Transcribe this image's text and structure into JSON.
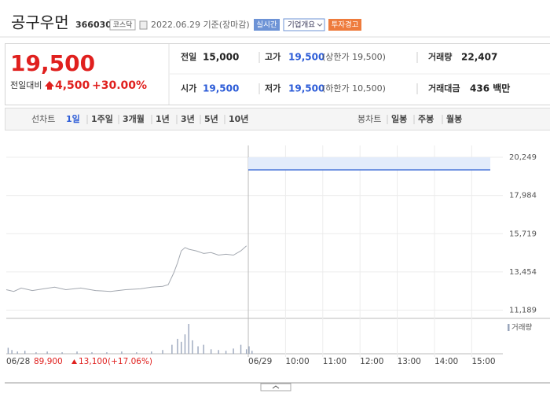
{
  "header": {
    "name": "공구우먼",
    "code": "366030",
    "market": "코스닥",
    "date": "2022.06.29 기준(장마감)",
    "buttons": [
      "실시간",
      "기업개요",
      "투자경고"
    ]
  },
  "quote": {
    "price": "19,500",
    "change_label": "전일대비",
    "change": "4,500",
    "change_pct": "+30.00%",
    "stats": [
      {
        "label": "전일",
        "value": "15,000"
      },
      {
        "label": "고가",
        "value": "19,500",
        "note": "(상한가 19,500)"
      },
      {
        "label": "거래량",
        "value": "22,407"
      },
      {
        "label": "시가",
        "value": "19,500"
      },
      {
        "label": "저가",
        "value": "19,500",
        "note": "(하한가 10,500)"
      },
      {
        "label": "거래대금",
        "value": "436 백만"
      }
    ]
  },
  "tabs": {
    "line_chart": "선차트",
    "line_periods": [
      "1일",
      "1주일",
      "3개월",
      "1년",
      "3년",
      "5년",
      "10년"
    ],
    "candle_chart": "봉차트",
    "candle_periods": [
      "일봉",
      "주봉",
      "월봉"
    ]
  },
  "footer": {
    "price": "89,900",
    "change": "13,100",
    "change_pct": "(+17.06%)"
  },
  "chart_data": {
    "type": "line",
    "xlim": [
      0,
      13.4
    ],
    "ylim": [
      10700,
      20950
    ],
    "xticks": [
      {
        "value": 0,
        "label": "06/28"
      },
      {
        "value": 6.5,
        "label": "06/29"
      },
      {
        "value": 7.5,
        "label": "10:00"
      },
      {
        "value": 8.5,
        "label": "11:00"
      },
      {
        "value": 9.5,
        "label": "12:00"
      },
      {
        "value": 10.5,
        "label": "13:00"
      },
      {
        "value": 11.5,
        "label": "14:00"
      },
      {
        "value": 12.5,
        "label": "15:00"
      }
    ],
    "yticks": [
      {
        "value": 11189,
        "label": "11,189"
      },
      {
        "value": 13454,
        "label": "13,454"
      },
      {
        "value": 15719,
        "label": "15,719"
      },
      {
        "value": 17984,
        "label": "17,984"
      },
      {
        "value": 20249,
        "label": "20,249"
      }
    ],
    "grid": true,
    "series": [
      {
        "color": "#a3a8b0",
        "x": [
          0,
          0.2,
          0.4,
          0.7,
          1.0,
          1.3,
          1.6,
          2.0,
          2.4,
          2.8,
          3.2,
          3.6,
          3.9,
          4.2,
          4.35,
          4.5,
          4.6,
          4.7,
          4.8,
          4.9,
          5.1,
          5.3,
          5.5,
          5.7,
          5.9,
          6.1,
          6.3,
          6.45
        ],
        "values": [
          12400,
          12300,
          12500,
          12350,
          12450,
          12550,
          12400,
          12500,
          12350,
          12300,
          12400,
          12450,
          12550,
          12600,
          12700,
          13400,
          14000,
          14700,
          14900,
          14800,
          14700,
          14550,
          14600,
          14450,
          14500,
          14450,
          14700,
          15000
        ]
      },
      {
        "color": "#4f79d9",
        "x": [
          6.5,
          13.0
        ],
        "values": [
          19500,
          19500
        ]
      }
    ],
    "volume": {
      "name": "거래량",
      "color": "#9aa6bc",
      "x": [
        0.05,
        0.15,
        0.3,
        0.5,
        0.8,
        1.1,
        1.5,
        1.9,
        2.3,
        2.7,
        3.1,
        3.5,
        3.9,
        4.2,
        4.45,
        4.6,
        4.7,
        4.8,
        4.9,
        5.0,
        5.15,
        5.3,
        5.5,
        5.7,
        5.9,
        6.1,
        6.3,
        6.45,
        6.52,
        6.6
      ],
      "values": [
        8,
        5,
        3,
        4,
        2,
        3,
        2,
        3,
        2,
        2,
        3,
        2,
        3,
        5,
        12,
        20,
        16,
        26,
        40,
        18,
        10,
        12,
        6,
        5,
        4,
        7,
        12,
        6,
        10,
        4
      ]
    }
  }
}
